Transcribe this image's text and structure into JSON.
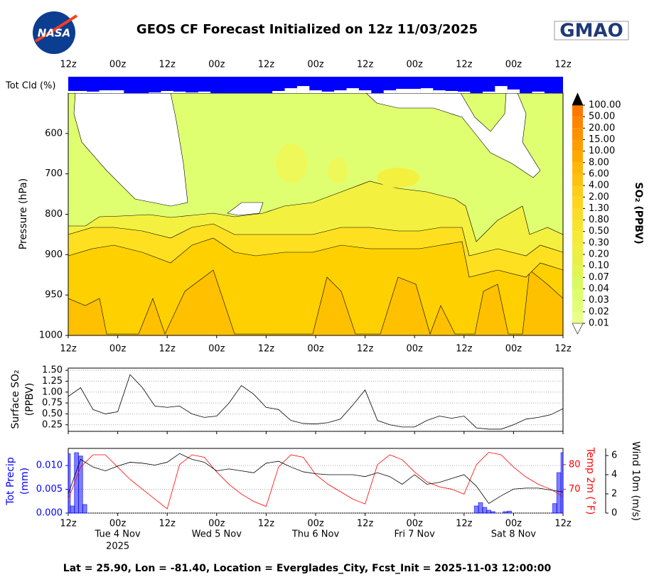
{
  "logos": [
    "NASA",
    "GMAO"
  ],
  "chart_data": [
    {
      "type": "contour",
      "title": "GEOS CF Forecast Initialized on 12z 11/03/2025",
      "ylabel": "Pressure (hPa)",
      "xlim": [
        0,
        120
      ],
      "xticks": [
        {
          "value": 0,
          "label": "12z"
        },
        {
          "value": 12,
          "label": "00z"
        },
        {
          "value": 24,
          "label": "12z"
        },
        {
          "value": 36,
          "label": "00z"
        },
        {
          "value": 48,
          "label": "12z"
        },
        {
          "value": 60,
          "label": "00z"
        },
        {
          "value": 72,
          "label": "12z"
        },
        {
          "value": 84,
          "label": "00z"
        },
        {
          "value": 96,
          "label": "12z"
        },
        {
          "value": 108,
          "label": "00z"
        },
        {
          "value": 120,
          "label": "12z"
        }
      ],
      "ylim": [
        1000,
        500
      ],
      "yticks": [
        1000,
        950,
        900,
        800,
        700,
        600
      ],
      "y_scale": "tick-spaced",
      "colorbar": {
        "label": "SO₂ (PPBV)",
        "levels": [
          0.01,
          0.02,
          0.03,
          0.04,
          0.07,
          {
            "value": 0.1,
            "label": "0.10"
          },
          {
            "value": 0.2,
            "label": "0.20"
          },
          {
            "value": 0.3,
            "label": "0.30"
          },
          {
            "value": 0.5,
            "label": "0.50"
          },
          {
            "value": 0.8,
            "label": "0.80"
          },
          {
            "value": 1.3,
            "label": "1.30"
          },
          {
            "value": 2,
            "label": "2.00"
          },
          {
            "value": 4,
            "label": "4.00"
          },
          {
            "value": 6,
            "label": "6.00"
          },
          {
            "value": 8,
            "label": "8.00"
          },
          {
            "value": 10,
            "label": "10.00"
          },
          {
            "value": 15,
            "label": "15.00"
          },
          {
            "value": 20,
            "label": "20.00"
          },
          {
            "value": 50,
            "label": "50.00"
          },
          {
            "value": 100,
            "label": "100.00"
          }
        ],
        "colors": [
          "#e8ff88",
          "#e2ff78",
          "#dcff6c",
          "#d8fa60",
          "#e0f550",
          "#e8f048",
          "#f0ee40",
          "#f4ea38",
          "#f8e430",
          "#fcdc28",
          "#ffd420",
          "#ffcc18",
          "#ffc010",
          "#ffb808",
          "#ffaa00",
          "#ff9c00",
          "#ff9000",
          "#ff8400",
          "#ff7800"
        ],
        "under_color": "#ffffff",
        "over_color": "#000000"
      }
    },
    {
      "type": "bar",
      "ylabel": "Tot Cld (%)",
      "color": "#ffffff",
      "background": "#0000ff",
      "ylim": [
        0,
        100
      ],
      "x": [
        0,
        3,
        6,
        9,
        12,
        15,
        18,
        21,
        24,
        27,
        30,
        33,
        36,
        39,
        42,
        45,
        48,
        51,
        54,
        57,
        60,
        63,
        66,
        69,
        72,
        75,
        78,
        81,
        84,
        87,
        90,
        93,
        96,
        99,
        102,
        105,
        108,
        111,
        114,
        117,
        120
      ],
      "values": [
        13,
        13,
        9,
        17,
        17,
        0,
        0,
        4,
        13,
        9,
        4,
        9,
        0,
        0,
        0,
        0,
        0,
        13,
        30,
        43,
        17,
        9,
        17,
        30,
        17,
        0,
        17,
        26,
        26,
        30,
        17,
        13,
        9,
        0,
        9,
        43,
        22,
        0,
        9,
        0,
        0
      ]
    },
    {
      "type": "line",
      "ylabel": [
        "Surface SO₂",
        "(PPBV)"
      ],
      "color": "#000000",
      "grid": true,
      "ylim": [
        0.1,
        1.55
      ],
      "yticks": [
        0.25,
        {
          "value": 0.5,
          "label": "0.50"
        },
        0.75,
        {
          "value": 1,
          "label": "1.00"
        },
        1.25,
        {
          "value": 1.5,
          "label": "1.50"
        }
      ],
      "x": [
        0,
        3,
        6,
        9,
        12,
        15,
        18,
        21,
        24,
        27,
        30,
        33,
        36,
        39,
        42,
        45,
        48,
        51,
        54,
        57,
        60,
        63,
        66,
        69,
        72,
        75,
        78,
        81,
        84,
        87,
        90,
        93,
        96,
        99,
        102,
        105,
        108,
        111,
        114,
        117,
        120
      ],
      "values": [
        0.9,
        1.1,
        0.6,
        0.5,
        0.55,
        1.4,
        1.1,
        0.68,
        0.65,
        0.68,
        0.5,
        0.42,
        0.45,
        0.75,
        1.15,
        0.95,
        0.65,
        0.6,
        0.35,
        0.28,
        0.27,
        0.3,
        0.38,
        0.7,
        1.05,
        0.35,
        0.25,
        0.2,
        0.2,
        0.35,
        0.45,
        0.4,
        0.45,
        0.18,
        0.15,
        0.15,
        0.25,
        0.38,
        0.42,
        0.48,
        0.62
      ]
    },
    {
      "type": "combo",
      "ylabel": [
        "Tot Precip",
        "(mm)"
      ],
      "y2label": "Temp 2m (˚F)",
      "y3label": "Wind 10m (m/s)",
      "grid": true,
      "ylim": [
        0,
        0.0136
      ],
      "yticks": [
        {
          "value": 0,
          "label": "0.000"
        },
        {
          "value": 0.005,
          "label": "0.005"
        },
        {
          "value": 0.01,
          "label": "0.010"
        }
      ],
      "y2lim": [
        60.3,
        86.6
      ],
      "y2ticks": [
        70,
        80
      ],
      "y3lim": [
        0,
        6.74
      ],
      "y3ticks": [
        0,
        2,
        4,
        6
      ],
      "date_labels": [
        {
          "value": 12,
          "label": "Tue 4 Nov"
        },
        {
          "value": 36,
          "label": "Wed 5 Nov"
        },
        {
          "value": 60,
          "label": "Thu 6 Nov"
        },
        {
          "value": 84,
          "label": "Fri 7 Nov"
        },
        {
          "value": 108,
          "label": "Sat 8 Nov"
        }
      ],
      "year_label": {
        "value": 12,
        "label": "2025"
      },
      "series": [
        {
          "kind": "bar",
          "color": "#0000ff",
          "x": [
            0,
            1,
            2,
            3,
            4,
            99,
            100,
            101,
            102,
            103,
            106,
            107,
            118,
            119,
            120
          ],
          "values": [
            0.0125,
            0.0015,
            0.0127,
            0.012,
            0.0018,
            0.0015,
            0.0022,
            0.0012,
            0.0006,
            0.0003,
            0.0003,
            0.0004,
            0.002,
            0.0085,
            0.0127
          ]
        },
        {
          "kind": "line",
          "axis": "y2",
          "color": "#ff0000",
          "x": [
            0,
            3,
            6,
            9,
            12,
            15,
            18,
            21,
            24,
            27,
            30,
            33,
            36,
            39,
            42,
            45,
            48,
            51,
            54,
            57,
            60,
            63,
            66,
            69,
            72,
            75,
            78,
            81,
            84,
            87,
            90,
            93,
            96,
            99,
            102,
            105,
            108,
            111,
            114,
            117,
            120
          ],
          "values": [
            66,
            79,
            84,
            84,
            79,
            74,
            70,
            66,
            62,
            80,
            84,
            83,
            77,
            72,
            68,
            65,
            63,
            79,
            84,
            83,
            76,
            72,
            69,
            66,
            64,
            80,
            84,
            82,
            77,
            73,
            71,
            70,
            68,
            80,
            85,
            84,
            79,
            75,
            72,
            70,
            67
          ]
        },
        {
          "kind": "line",
          "axis": "y3",
          "color": "#000000",
          "x": [
            0,
            3,
            6,
            9,
            12,
            15,
            18,
            21,
            24,
            27,
            30,
            33,
            36,
            39,
            42,
            45,
            48,
            51,
            54,
            57,
            60,
            63,
            66,
            69,
            72,
            75,
            78,
            81,
            84,
            87,
            90,
            93,
            96,
            99,
            102,
            105,
            108,
            111,
            114,
            117,
            120
          ],
          "values": [
            2,
            5.6,
            4.8,
            4.4,
            4.9,
            5.3,
            5.2,
            5,
            5.3,
            6.2,
            5.6,
            5.3,
            4.4,
            4.6,
            4.4,
            4.2,
            5.2,
            5.4,
            4.8,
            4.3,
            4.1,
            4,
            4,
            4,
            3.8,
            4.2,
            3.8,
            3,
            4,
            3,
            3.2,
            3.6,
            4,
            2.8,
            1,
            1.8,
            2.5,
            2.6,
            2.6,
            2.4,
            2.2
          ]
        }
      ],
      "footnote": "Lat = 25.90, Lon = -81.40, Location = Everglades_City, Fcst_Init = 2025-11-03 12:00:00"
    }
  ]
}
